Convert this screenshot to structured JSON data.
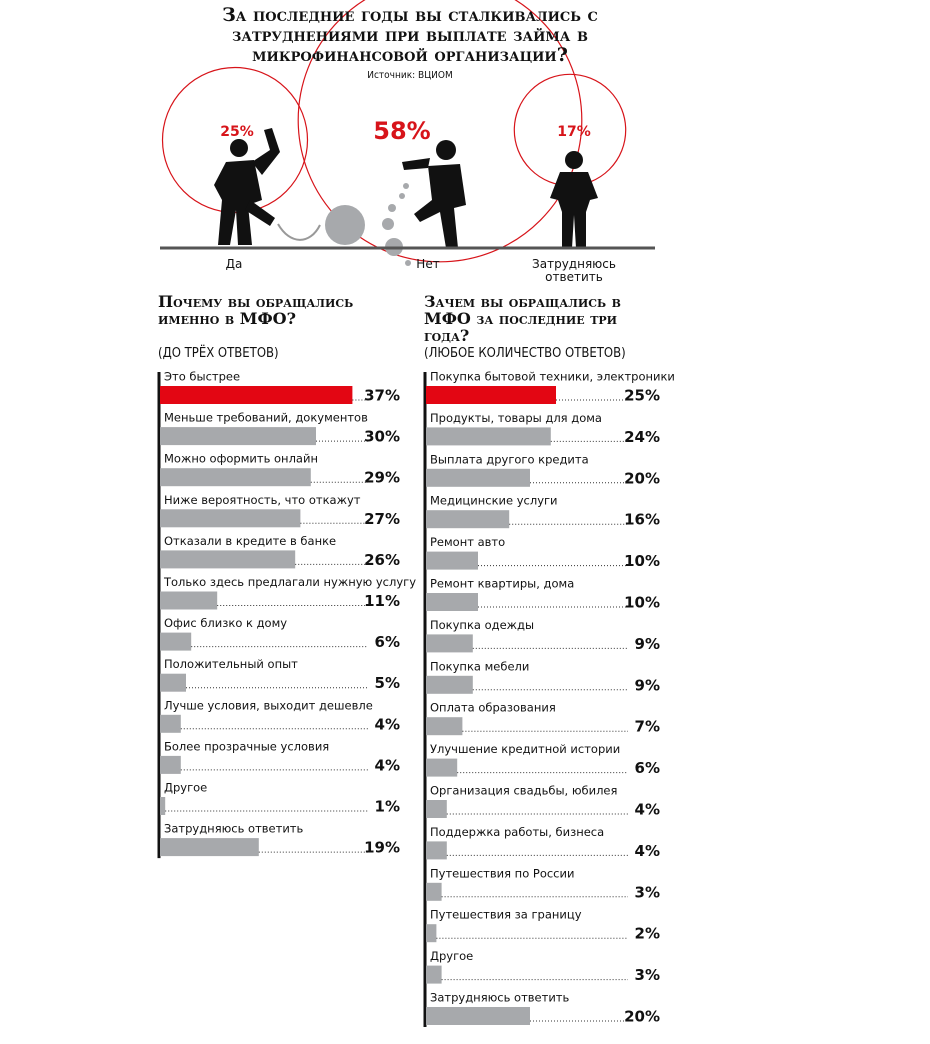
{
  "chart_data": [
    {
      "type": "bubble",
      "title": "За последние годы вы сталкивались с затруднениями при выплате займа в микрофинансовой организации?",
      "source": "Источник: ВЦИОМ",
      "categories": [
        "Да",
        "Нет",
        "Затрудняюсь ответить"
      ],
      "values": [
        25,
        58,
        17
      ],
      "value_labels": [
        "25%",
        "58%",
        "17%"
      ],
      "color": "#d7141a"
    },
    {
      "type": "bar",
      "orientation": "horizontal",
      "title": "Почему вы обращались именно в МФО?",
      "subtitle": "(ДО ТРЁХ ОТВЕТОВ)",
      "categories": [
        "Это быстрее",
        "Меньше требований, документов",
        "Можно оформить онлайн",
        "Ниже вероятность, что откажут",
        "Отказали в кредите в банке",
        "Только здесь предлагали нужную услугу",
        "Офис близко к дому",
        "Положительный опыт",
        "Лучше условия, выходит дешевле",
        "Более прозрачные условия",
        "Другое",
        "Затрудняюсь ответить"
      ],
      "values": [
        37,
        30,
        29,
        27,
        26,
        11,
        6,
        5,
        4,
        4,
        1,
        19
      ],
      "value_labels": [
        "37%",
        "30%",
        "29%",
        "27%",
        "26%",
        "11%",
        "6%",
        "5%",
        "4%",
        "4%",
        "1%",
        "19%"
      ],
      "colors": [
        "#e30613",
        "#a7a9ac",
        "#a7a9ac",
        "#a7a9ac",
        "#a7a9ac",
        "#a7a9ac",
        "#a7a9ac",
        "#a7a9ac",
        "#a7a9ac",
        "#a7a9ac",
        "#a7a9ac",
        "#a7a9ac"
      ]
    },
    {
      "type": "bar",
      "orientation": "horizontal",
      "title": "Зачем вы обращались в МФО за последние три года?",
      "subtitle": "(ЛЮБОЕ КОЛИЧЕСТВО ОТВЕТОВ)",
      "categories": [
        "Покупка бытовой техники, электроники",
        "Продукты, товары для дома",
        "Выплата другого кредита",
        "Медицинские услуги",
        "Ремонт авто",
        "Ремонт квартиры, дома",
        "Покупка одежды",
        "Покупка мебели",
        "Оплата образования",
        "Улучшение кредитной истории",
        "Организация свадьбы, юбилея",
        "Поддержка работы, бизнеса",
        "Путешествия по России",
        "Путешествия за границу",
        "Другое",
        "Затрудняюсь ответить"
      ],
      "values": [
        25,
        24,
        20,
        16,
        10,
        10,
        9,
        9,
        7,
        6,
        4,
        4,
        3,
        2,
        3,
        20
      ],
      "value_labels": [
        "25%",
        "24%",
        "20%",
        "16%",
        "10%",
        "10%",
        "9%",
        "9%",
        "7%",
        "6%",
        "4%",
        "4%",
        "3%",
        "2%",
        "3%",
        "20%"
      ],
      "colors": [
        "#e30613",
        "#a7a9ac",
        "#a7a9ac",
        "#a7a9ac",
        "#a7a9ac",
        "#a7a9ac",
        "#a7a9ac",
        "#a7a9ac",
        "#a7a9ac",
        "#a7a9ac",
        "#a7a9ac",
        "#a7a9ac",
        "#a7a9ac",
        "#a7a9ac",
        "#a7a9ac",
        "#a7a9ac"
      ]
    }
  ]
}
